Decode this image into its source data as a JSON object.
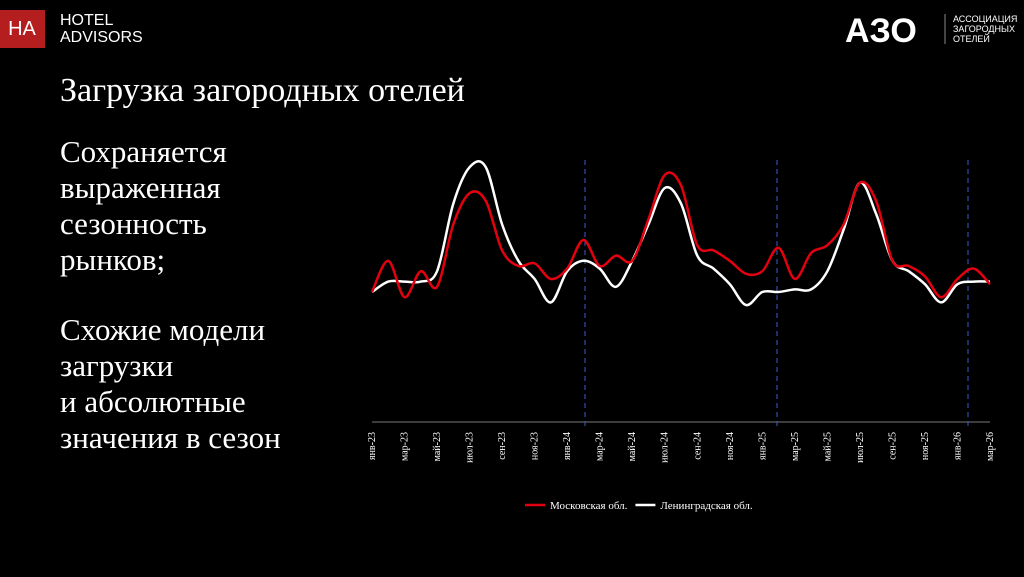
{
  "header": {
    "logo_mark": "HA",
    "brand_lines": [
      "HOTEL",
      "ADVISORS"
    ],
    "partner_mark": "АЗО",
    "partner_lines": [
      "АССОЦИАЦИЯ",
      "ЗАГОРОДНЫХ",
      "ОТЕЛЕЙ"
    ]
  },
  "title": "Загрузка загородных отелей",
  "paragraphs": [
    [
      "Сохраняется",
      "выраженная",
      "сезонность",
      "рынков;"
    ],
    [
      "Схожие модели",
      "загрузки",
      "и абсолютные",
      "значения в сезон"
    ]
  ],
  "chart_data": {
    "type": "line",
    "categories": [
      "янв-23",
      null,
      "мар-23",
      null,
      "май-23",
      null,
      "июл-23",
      null,
      "сен-23",
      null,
      "ноя-23",
      null,
      "янв-24",
      null,
      "мар-24",
      null,
      "май-24",
      null,
      "июл-24",
      null,
      "сен-24",
      null,
      "ноя-24",
      null,
      "янв-25",
      null,
      "мар-25",
      null,
      "май-25",
      null,
      "июл-25",
      null,
      "сен-25",
      null,
      "ноя-25",
      null,
      "янв-26",
      null,
      "мар-26"
    ],
    "series": [
      {
        "name": "Московская обл.",
        "color": "#e3000f",
        "values": [
          50,
          62,
          48,
          58,
          52,
          76,
          88,
          85,
          66,
          60,
          61,
          55,
          59,
          70,
          60,
          64,
          62,
          78,
          95,
          91,
          68,
          66,
          62,
          57,
          58,
          67,
          55,
          65,
          68,
          76,
          92,
          85,
          62,
          60,
          56,
          48,
          55,
          59,
          53
        ]
      },
      {
        "name": "Ленинградская обл.",
        "color": "#ffffff",
        "values": [
          50,
          54,
          54,
          54,
          58,
          84,
          98,
          98,
          76,
          62,
          55,
          46,
          58,
          62,
          59,
          52,
          62,
          76,
          90,
          84,
          64,
          59,
          53,
          45,
          50,
          50,
          51,
          51,
          58,
          74,
          92,
          80,
          62,
          58,
          53,
          46,
          53,
          54,
          54
        ]
      }
    ],
    "ylim": [
      0,
      100
    ],
    "legend": "bottom"
  }
}
